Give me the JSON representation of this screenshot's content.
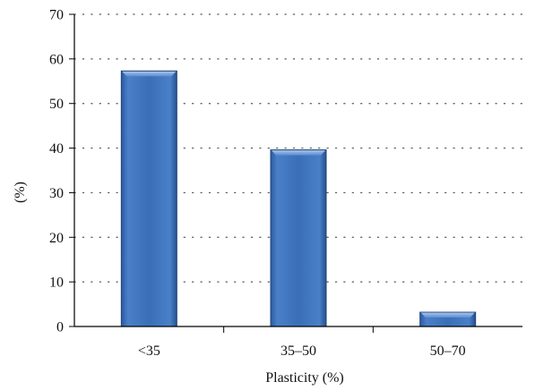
{
  "chart_data": {
    "type": "bar",
    "title": "",
    "xlabel": "Plasticity (%)",
    "ylabel": "(%)",
    "categories": [
      "<35",
      "35–50",
      "50–70"
    ],
    "values": [
      57.3,
      39.6,
      3.2
    ],
    "ylim": [
      0,
      70
    ],
    "yticks": [
      0,
      10,
      20,
      30,
      40,
      50,
      60,
      70
    ],
    "grid": true,
    "legend": "none"
  },
  "colors": {
    "bar_fill": "#3a6fb7",
    "bar_top": "#7fa6de",
    "bar_edge": "#1f4478",
    "grid": "#555555",
    "axis": "#000000"
  }
}
